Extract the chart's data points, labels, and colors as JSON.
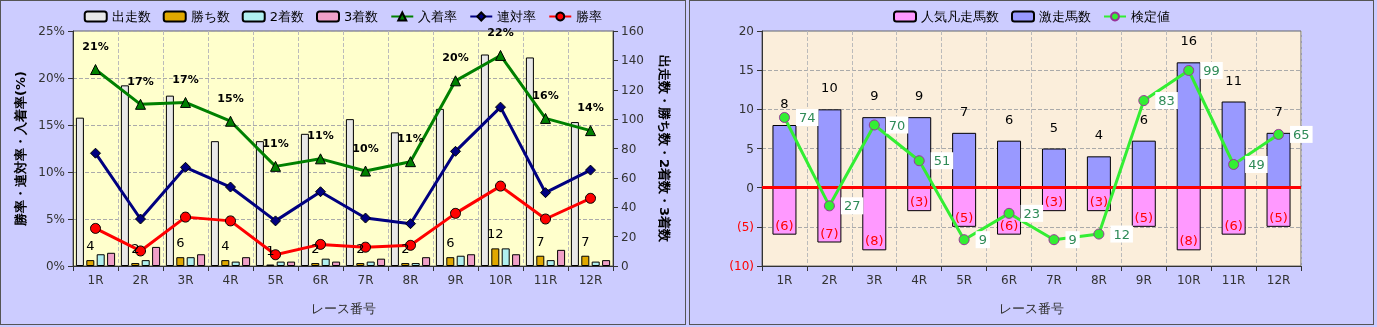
{
  "chart_data": [
    {
      "type": "bar",
      "xlabel": "レース番号",
      "ylabel": "勝率・連対率・入着率(%)",
      "y2label": "出走数・勝ち数・2着数・3着数",
      "categories": [
        "1R",
        "2R",
        "3R",
        "4R",
        "5R",
        "6R",
        "7R",
        "8R",
        "9R",
        "10R",
        "11R",
        "12R"
      ],
      "ylim": [
        0,
        25
      ],
      "yticks": [
        {
          "value": 0,
          "label": "0%"
        },
        {
          "value": 5,
          "label": "5%"
        },
        {
          "value": 10,
          "label": "10%"
        },
        {
          "value": 15,
          "label": "15%"
        },
        {
          "value": 20,
          "label": "20%"
        },
        {
          "value": 25,
          "label": "25%"
        }
      ],
      "y2lim": [
        0,
        160
      ],
      "y2ticks": [
        0,
        20,
        40,
        60,
        80,
        100,
        120,
        140,
        160
      ],
      "grid": true,
      "legend": "top",
      "series": [
        {
          "name": "出走数",
          "axis": "y2",
          "color": "#e8e8e8",
          "values": [
            101,
            123,
            116,
            85,
            85,
            90,
            100,
            91,
            107,
            144,
            142,
            98
          ]
        },
        {
          "name": "勝ち数",
          "axis": "y2",
          "color": "#e0a800",
          "values": [
            4,
            2,
            6,
            4,
            1,
            2,
            2,
            2,
            6,
            12,
            7,
            7
          ],
          "value_labels": [
            "4",
            "2",
            "6",
            "4",
            "1",
            "2",
            "2",
            "2",
            "6",
            "12",
            "7",
            "7"
          ]
        },
        {
          "name": "2着数",
          "axis": "y2",
          "color": "#b0f0f0",
          "values": [
            8,
            4,
            6,
            3,
            3,
            5,
            3,
            2,
            7,
            12,
            4,
            3
          ]
        },
        {
          "name": "3着数",
          "axis": "y2",
          "color": "#f0a0c8",
          "values": [
            9,
            13,
            8,
            6,
            3,
            3,
            5,
            6,
            8,
            8,
            11,
            4
          ]
        },
        {
          "name": "入着率",
          "type": "line",
          "color": "#008000",
          "marker": "triangle",
          "values": [
            20.9,
            17.2,
            17.4,
            15.4,
            10.6,
            11.4,
            10.1,
            11.1,
            19.7,
            22.4,
            15.7,
            14.4
          ],
          "value_labels": [
            "21%",
            "17%",
            "17%",
            "15%",
            "11%",
            "11%",
            "10%",
            "11%",
            "20%",
            "22%",
            "16%",
            "14%"
          ]
        },
        {
          "name": "連対率",
          "type": "line",
          "color": "#000080",
          "marker": "diamond",
          "values": [
            12.0,
            5.0,
            10.5,
            8.4,
            4.8,
            7.9,
            5.1,
            4.5,
            12.2,
            16.9,
            7.8,
            10.2
          ]
        },
        {
          "name": "勝率",
          "type": "line",
          "color": "#ff0000",
          "marker": "circle",
          "values": [
            4.0,
            1.6,
            5.2,
            4.8,
            1.2,
            2.3,
            2.0,
            2.2,
            5.6,
            8.5,
            5.0,
            7.2
          ]
        }
      ]
    },
    {
      "type": "bar",
      "xlabel": "レース番号",
      "stacked": true,
      "categories": [
        "1R",
        "2R",
        "3R",
        "4R",
        "5R",
        "6R",
        "7R",
        "8R",
        "9R",
        "10R",
        "11R",
        "12R"
      ],
      "ylim": [
        -10,
        20
      ],
      "yticks": [
        {
          "value": -10,
          "label": "(10)"
        },
        {
          "value": -5,
          "label": "(5)"
        },
        0,
        5,
        10,
        15,
        20
      ],
      "y2lim": [
        -5,
        120
      ],
      "grid": true,
      "legend": "top",
      "ref_lines": [
        {
          "axis": "y",
          "value": 0,
          "color": "#ff0000"
        }
      ],
      "series": [
        {
          "name": "人気凡走馬数",
          "color": "#ff99ff",
          "values": [
            -6,
            -7,
            -8,
            -3,
            -5,
            -6,
            -3,
            -3,
            -5,
            -8,
            -6,
            -5
          ],
          "value_labels": [
            "(6)",
            "(7)",
            "(8)",
            "(3)",
            "(5)",
            "(6)",
            "(3)",
            "(3)",
            "(5)",
            "(8)",
            "(6)",
            "(5)"
          ]
        },
        {
          "name": "激走馬数",
          "color": "#9999ff",
          "values": [
            8,
            10,
            9,
            9,
            7,
            6,
            5,
            4,
            6,
            16,
            11,
            7
          ],
          "value_labels": [
            "8",
            "10",
            "9",
            "9",
            "7",
            "6",
            "5",
            "4",
            "6",
            "16",
            "11",
            "7"
          ]
        },
        {
          "name": "検定値",
          "type": "line",
          "axis": "y2",
          "color": "#33ee33",
          "marker": "circle",
          "values": [
            74,
            27,
            70,
            51,
            9,
            23,
            9,
            12,
            83,
            99,
            49,
            65
          ],
          "value_labels": [
            "74",
            "27",
            "70",
            "51",
            "9",
            "23",
            "9",
            "12",
            "83",
            "99",
            "49",
            "65"
          ]
        }
      ]
    }
  ]
}
